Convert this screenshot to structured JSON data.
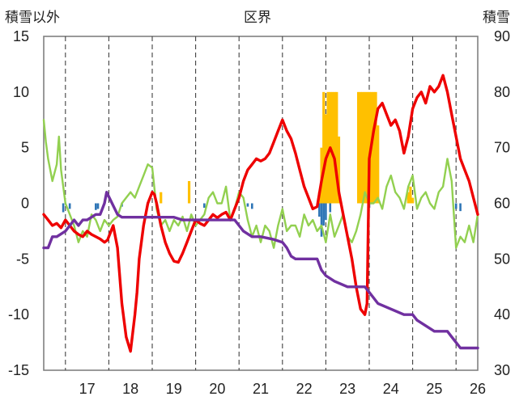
{
  "chart_data": {
    "type": "line",
    "title": "区界",
    "left_axis_label": "積雪以外",
    "right_axis_label": "積雪",
    "left_ylim": [
      -15,
      15
    ],
    "left_ticks": [
      "15",
      "10",
      "5",
      "0",
      "-5",
      "-10",
      "-15"
    ],
    "right_ylim": [
      30,
      90
    ],
    "right_ticks": [
      "90",
      "80",
      "70",
      "60",
      "50",
      "40",
      "30"
    ],
    "x_range": [
      16.5,
      26.5
    ],
    "x_ticks": [
      "17",
      "18",
      "19",
      "20",
      "21",
      "22",
      "23",
      "24",
      "25",
      "26"
    ],
    "grid": "dashed vertical at year boundaries",
    "colors": {
      "red": "#ee0000",
      "green": "#92d050",
      "purple": "#7030a0",
      "orange": "#ffc000",
      "blue": "#2e75b6"
    },
    "series": [
      {
        "color": "red",
        "axis": "left",
        "x": [
          16.5,
          16.6,
          16.7,
          16.8,
          16.9,
          17.0,
          17.1,
          17.2,
          17.3,
          17.4,
          17.5,
          17.6,
          17.7,
          17.8,
          17.9,
          17.97,
          18.1,
          18.2,
          18.3,
          18.4,
          18.5,
          18.6,
          18.65,
          18.7,
          18.8,
          18.9,
          19.0,
          19.05,
          19.1,
          19.2,
          19.3,
          19.4,
          19.5,
          19.6,
          19.7,
          19.8,
          19.9,
          20.0,
          20.1,
          20.2,
          20.3,
          20.4,
          20.5,
          20.6,
          20.7,
          20.8,
          20.9,
          21.0,
          21.1,
          21.2,
          21.3,
          21.4,
          21.5,
          21.6,
          21.7,
          21.8,
          21.9,
          22.0,
          22.1,
          22.2,
          22.3,
          22.4,
          22.5,
          22.6,
          22.7,
          22.8,
          22.9,
          23.0,
          23.1,
          23.2,
          23.3,
          23.4,
          23.5,
          23.6,
          23.7,
          23.8,
          23.9,
          23.95,
          24.0,
          24.1,
          24.2,
          24.3,
          24.4,
          24.5,
          24.6,
          24.7,
          24.8,
          24.9,
          25.0,
          25.1,
          25.2,
          25.3,
          25.4,
          25.5,
          25.6,
          25.7,
          25.8,
          25.9,
          26.0,
          26.1,
          26.2,
          26.3,
          26.4,
          26.5
        ],
        "y": [
          -1.0,
          -1.5,
          -2.0,
          -1.8,
          -2.2,
          -1.5,
          -2.0,
          -2.5,
          -2.8,
          -3.0,
          -2.5,
          -2.8,
          -3.0,
          -3.2,
          -3.5,
          -3.3,
          -2.0,
          -4.0,
          -9.0,
          -12.0,
          -13.3,
          -10.0,
          -8.0,
          -5.0,
          -2.0,
          0.0,
          1.0,
          0.8,
          0.0,
          -2.0,
          -3.5,
          -4.5,
          -5.2,
          -5.3,
          -4.5,
          -3.5,
          -2.5,
          -1.5,
          -1.8,
          -2.0,
          -1.5,
          -1.0,
          -1.3,
          -1.0,
          -0.8,
          -1.5,
          -0.5,
          0.5,
          2.0,
          3.0,
          3.5,
          4.0,
          3.8,
          4.0,
          4.5,
          5.5,
          6.5,
          7.5,
          6.5,
          5.8,
          4.5,
          3.0,
          1.5,
          0.5,
          -0.5,
          -0.3,
          2.0,
          4.0,
          5.0,
          4.0,
          1.0,
          -1.0,
          -3.0,
          -5.0,
          -7.5,
          -9.5,
          -10.0,
          -9.0,
          4.0,
          6.5,
          8.5,
          9.0,
          8.0,
          7.0,
          7.5,
          6.5,
          4.5,
          6.0,
          8.5,
          9.5,
          10.0,
          9.0,
          10.5,
          10.0,
          10.5,
          11.5,
          10.0,
          8.0,
          6.0,
          4.0,
          3.0,
          2.0,
          0.5,
          -1.0
        ]
      },
      {
        "color": "green",
        "axis": "left",
        "x": [
          16.5,
          16.55,
          16.6,
          16.7,
          16.8,
          16.85,
          16.9,
          17.0,
          17.1,
          17.2,
          17.3,
          17.4,
          17.5,
          17.6,
          17.7,
          17.8,
          17.9,
          18.0,
          18.1,
          18.2,
          18.3,
          18.4,
          18.5,
          18.6,
          18.7,
          18.8,
          18.9,
          19.0,
          19.1,
          19.2,
          19.3,
          19.4,
          19.5,
          19.6,
          19.7,
          19.8,
          19.9,
          20.0,
          20.1,
          20.2,
          20.3,
          20.4,
          20.5,
          20.6,
          20.7,
          20.8,
          20.9,
          21.0,
          21.1,
          21.2,
          21.3,
          21.4,
          21.5,
          21.6,
          21.7,
          21.8,
          21.9,
          22.0,
          22.1,
          22.2,
          22.3,
          22.4,
          22.5,
          22.6,
          22.7,
          22.8,
          22.9,
          23.0,
          23.1,
          23.2,
          23.3,
          23.4,
          23.5,
          23.6,
          23.7,
          23.8,
          23.9,
          24.0,
          24.1,
          24.2,
          24.3,
          24.4,
          24.5,
          24.6,
          24.7,
          24.8,
          24.9,
          25.0,
          25.1,
          25.2,
          25.3,
          25.4,
          25.5,
          25.6,
          25.7,
          25.8,
          25.9,
          26.0,
          26.1,
          26.2,
          26.3,
          26.4,
          26.5
        ],
        "y": [
          7.5,
          5.5,
          4.0,
          2.0,
          3.5,
          6.0,
          3.0,
          0.0,
          -1.0,
          -2.0,
          -3.5,
          -2.5,
          -3.0,
          -1.0,
          -1.5,
          -2.5,
          -1.5,
          -2.0,
          -1.5,
          -1.2,
          0.0,
          0.5,
          1.0,
          0.5,
          1.5,
          2.5,
          3.5,
          3.2,
          -0.5,
          -2.0,
          -1.5,
          -2.5,
          -1.5,
          -2.0,
          -1.2,
          -2.5,
          -1.0,
          -2.0,
          -1.5,
          -1.0,
          0.5,
          1.0,
          0.0,
          0.0,
          1.5,
          -1.5,
          -0.5,
          1.0,
          0.5,
          -1.5,
          -3.0,
          -2.0,
          -3.5,
          -2.0,
          -2.5,
          -4.0,
          -2.0,
          -0.5,
          -2.5,
          -2.0,
          -2.0,
          -3.0,
          -1.0,
          -2.0,
          -1.5,
          -2.5,
          -2.0,
          -3.5,
          -1.0,
          -3.0,
          -2.0,
          -1.0,
          -3.0,
          -3.5,
          -2.5,
          -1.0,
          1.0,
          0.0,
          0.0,
          0.5,
          -0.5,
          1.5,
          2.5,
          1.0,
          0.5,
          -0.5,
          1.5,
          2.5,
          -0.5,
          0.5,
          1.0,
          0.0,
          -0.5,
          1.0,
          1.5,
          4.0,
          2.0,
          -4.0,
          -3.0,
          -3.5,
          -2.0,
          -3.5,
          -1.0
        ]
      },
      {
        "color": "purple",
        "axis": "right",
        "x": [
          16.5,
          16.6,
          16.7,
          16.8,
          17.0,
          17.1,
          17.2,
          17.3,
          17.4,
          17.5,
          17.6,
          17.7,
          17.8,
          17.9,
          17.95,
          18.2,
          18.3,
          18.5,
          19.0,
          19.5,
          19.7,
          20.0,
          20.5,
          20.9,
          21.0,
          21.1,
          21.3,
          21.5,
          21.8,
          22.0,
          22.1,
          22.2,
          22.3,
          22.5,
          22.8,
          22.9,
          23.0,
          23.2,
          23.5,
          23.9,
          24.0,
          24.1,
          24.2,
          24.5,
          24.8,
          25.0,
          25.1,
          25.3,
          25.5,
          25.8,
          25.9,
          26.0,
          26.1,
          26.2,
          26.5
        ],
        "y": [
          52,
          52,
          54,
          54,
          55,
          56,
          57,
          56,
          57,
          57,
          57.5,
          58,
          58,
          60,
          62,
          58,
          57.5,
          57.5,
          57.5,
          57.5,
          57,
          57,
          57,
          57,
          56,
          55,
          54,
          54,
          53.5,
          53,
          52,
          50.5,
          50,
          50,
          50,
          48,
          47,
          46,
          45,
          45,
          44,
          43,
          42,
          41,
          40,
          40,
          39,
          38,
          37,
          37,
          36,
          35,
          34,
          34,
          34
        ]
      },
      {
        "color": "orange",
        "axis": "right",
        "type": "bar",
        "x": [
          19.2,
          19.85,
          22.85,
          22.9,
          22.95,
          23.0,
          23.05,
          23.1,
          23.15,
          23.2,
          23.25,
          23.3,
          23.75,
          23.8,
          23.85,
          23.9,
          23.95,
          24.0,
          24.05,
          24.1,
          24.15,
          24.2,
          24.9,
          24.95,
          25.0
        ],
        "y": [
          62,
          64,
          62,
          70,
          80,
          76,
          80,
          80,
          80,
          80,
          80,
          72,
          80,
          80,
          80,
          80,
          80,
          80,
          80,
          80,
          80,
          74,
          62,
          63,
          61
        ]
      },
      {
        "color": "blue",
        "axis": "left",
        "type": "bar",
        "x": [
          16.95,
          17.1,
          17.7,
          17.75,
          18.3,
          20.2,
          21.2,
          21.3,
          22.85,
          22.9,
          22.95,
          23.0,
          23.1,
          24.0,
          26.0,
          26.1
        ],
        "y": [
          -0.8,
          -0.5,
          -0.6,
          -0.5,
          -0.3,
          -0.4,
          -0.3,
          -0.5,
          -1.2,
          -3.0,
          -2.0,
          -1.5,
          -0.8,
          -0.4,
          -0.5,
          -0.7
        ]
      }
    ]
  }
}
